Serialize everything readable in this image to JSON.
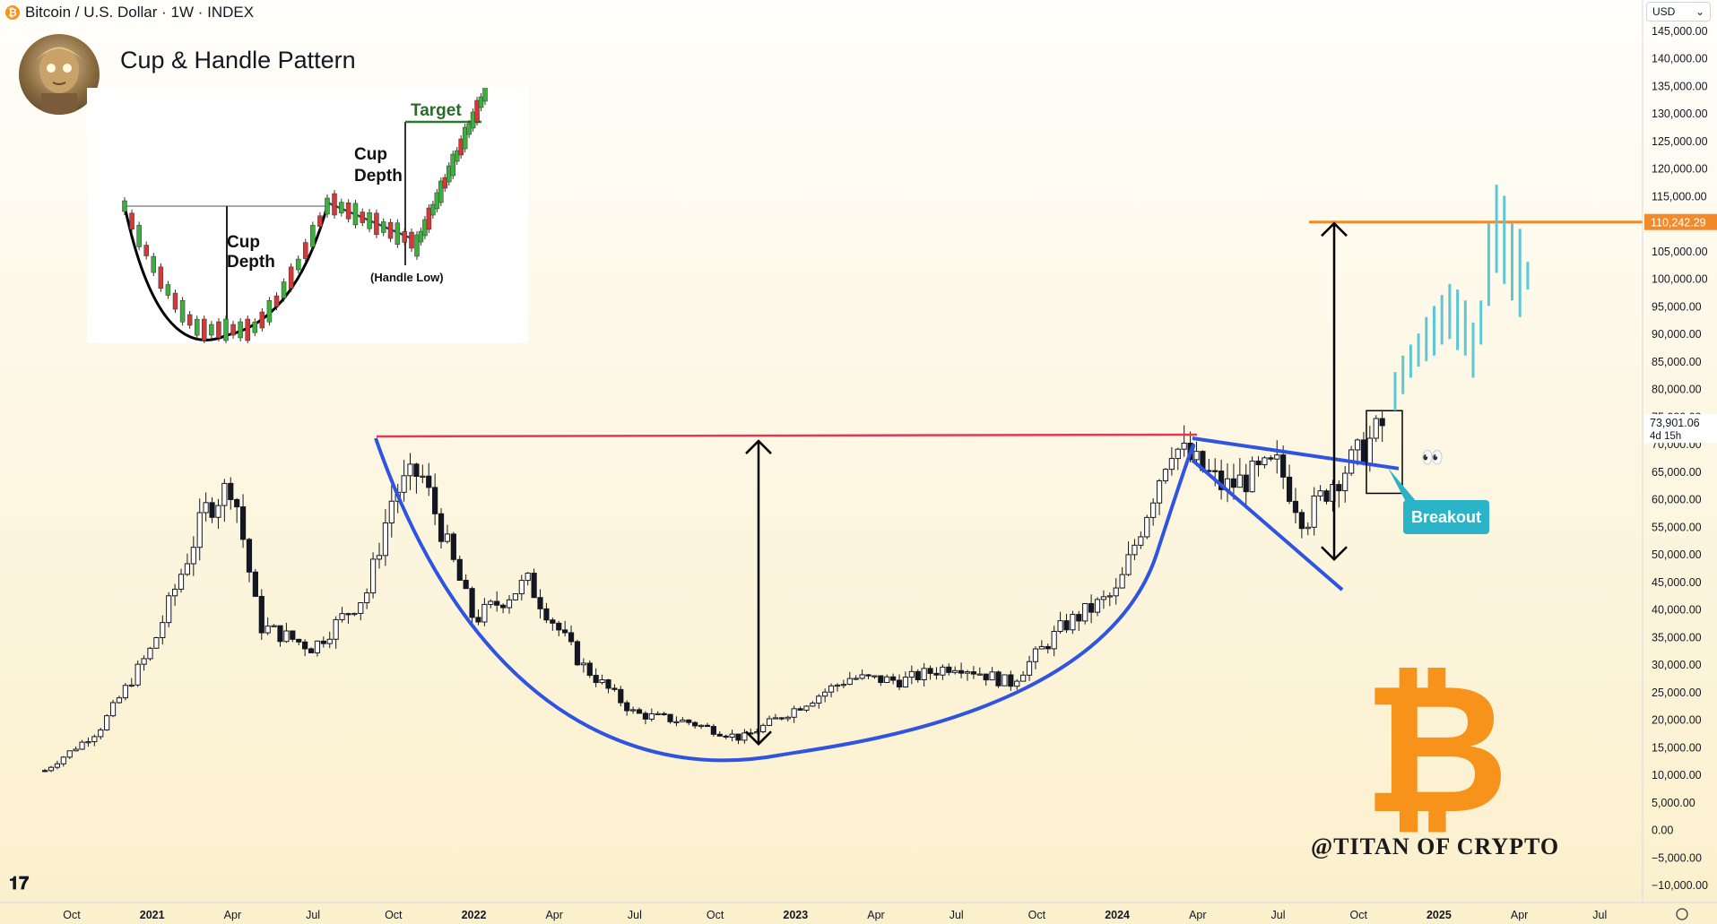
{
  "header": {
    "symbol_icon": "₿",
    "symbol_text": "Bitcoin / U.S. Dollar · 1W · INDEX"
  },
  "title": "Cup & Handle Pattern",
  "currency_select": {
    "value": "USD"
  },
  "price_label": "110,242.29",
  "last_price": "73,901.06",
  "countdown": "4d 15h",
  "breakout_label": "Breakout",
  "watermark": "@TITAN OF CRYPTO",
  "inset": {
    "target": "Target",
    "cup_depth_1": "Cup",
    "cup_depth_1b": "Depth",
    "cup_depth_2": "Cup",
    "cup_depth_2b": "Depth",
    "handle_low": "(Handle Low)"
  },
  "colors": {
    "resistance": "#e0385a",
    "target_line": "#f28a2a",
    "pattern_lines": "#2f54e0",
    "projection": "#5cc8d6",
    "bitcoin": "#f7931a",
    "breakout": "#2bb3c8"
  },
  "chart_data": {
    "type": "candlestick",
    "title": "Bitcoin / U.S. Dollar · 1W · INDEX",
    "y_axis_ticks": [
      "145,000.00",
      "140,000.00",
      "135,000.00",
      "130,000.00",
      "125,000.00",
      "120,000.00",
      "115,000.00",
      "110,000.00",
      "105,000.00",
      "100,000.00",
      "95,000.00",
      "90,000.00",
      "85,000.00",
      "80,000.00",
      "75,000.00",
      "70,000.00",
      "65,000.00",
      "60,000.00",
      "55,000.00",
      "50,000.00",
      "45,000.00",
      "40,000.00",
      "35,000.00",
      "30,000.00",
      "25,000.00",
      "20,000.00",
      "15,000.00",
      "10,000.00",
      "5,000.00",
      "0.00",
      "−5,000.00",
      "−10,000.00"
    ],
    "ylim": [
      -10000,
      145000
    ],
    "x_axis_ticks": [
      "Oct",
      "2021",
      "Apr",
      "Jul",
      "Oct",
      "2022",
      "Apr",
      "Jul",
      "Oct",
      "2023",
      "Apr",
      "Jul",
      "Oct",
      "2024",
      "Apr",
      "Jul",
      "Oct",
      "2025",
      "Apr",
      "Jul"
    ],
    "xlim": [
      "2020-09",
      "2025-08"
    ],
    "close_series": [
      {
        "date": "2020-09",
        "close": 10700
      },
      {
        "date": "2020-11",
        "close": 18000
      },
      {
        "date": "2021-01",
        "close": 33000
      },
      {
        "date": "2021-03",
        "close": 58000
      },
      {
        "date": "2021-04",
        "close": 63000
      },
      {
        "date": "2021-05",
        "close": 37000
      },
      {
        "date": "2021-07",
        "close": 33000
      },
      {
        "date": "2021-09",
        "close": 43000
      },
      {
        "date": "2021-10",
        "close": 61000
      },
      {
        "date": "2021-11",
        "close": 65000
      },
      {
        "date": "2022-01",
        "close": 38000
      },
      {
        "date": "2022-03",
        "close": 45000
      },
      {
        "date": "2022-05",
        "close": 30000
      },
      {
        "date": "2022-07",
        "close": 21000
      },
      {
        "date": "2022-09",
        "close": 19500
      },
      {
        "date": "2022-11",
        "close": 16500
      },
      {
        "date": "2023-01",
        "close": 22000
      },
      {
        "date": "2023-03",
        "close": 27500
      },
      {
        "date": "2023-05",
        "close": 27000
      },
      {
        "date": "2023-07",
        "close": 30000
      },
      {
        "date": "2023-09",
        "close": 26500
      },
      {
        "date": "2023-11",
        "close": 37000
      },
      {
        "date": "2024-01",
        "close": 43000
      },
      {
        "date": "2024-03",
        "close": 70000
      },
      {
        "date": "2024-05",
        "close": 62000
      },
      {
        "date": "2024-07",
        "close": 66000
      },
      {
        "date": "2024-08",
        "close": 56000
      },
      {
        "date": "2024-09",
        "close": 63000
      },
      {
        "date": "2024-10",
        "close": 68000
      },
      {
        "date": "2024-11",
        "close": 73901
      }
    ],
    "annotations": {
      "resistance_level": 71000,
      "target_level": 110242.29,
      "cup_bottom": 13500
    }
  }
}
